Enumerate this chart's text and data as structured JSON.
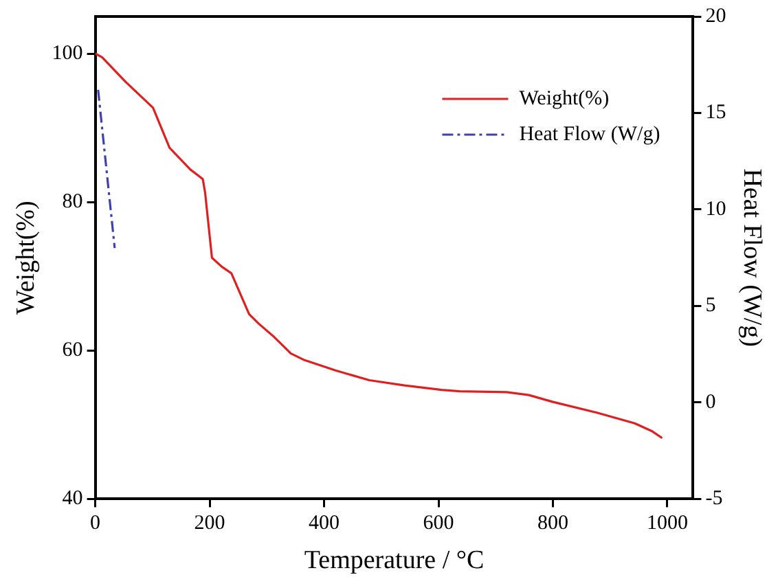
{
  "chart_data": {
    "type": "line",
    "xlabel": "Temperature / °C",
    "ylabel": "Weight(%)",
    "y2label": "Heat Flow (W/g)",
    "xlim": [
      0,
      1045
    ],
    "xticks": [
      0,
      200,
      400,
      600,
      800,
      1000
    ],
    "ylim": [
      40,
      105
    ],
    "yticks": [
      40,
      60,
      80,
      100
    ],
    "y2lim": [
      -5,
      20
    ],
    "y2ticks": [
      -5,
      0,
      5,
      10,
      15,
      20
    ],
    "legend": "top right",
    "grid": false,
    "marker": "none",
    "series": [
      {
        "name": "Weight(%)",
        "color": "#e02020",
        "line_style": "solid",
        "x": [
          0,
          12,
          53,
          101,
          130,
          166,
          188,
          192,
          204,
          221,
          238,
          269,
          286,
          313,
          342,
          366,
          421,
          479,
          541,
          606,
          637,
          719,
          758,
          799,
          878,
          943,
          974,
          991
        ],
        "values": [
          100,
          99.5,
          96.2,
          92.7,
          87.3,
          84.4,
          83.1,
          81.3,
          72.5,
          71.3,
          70.4,
          64.9,
          63.6,
          61.8,
          59.6,
          58.7,
          57.3,
          56,
          55.3,
          54.7,
          54.5,
          54.4,
          54,
          53.1,
          51.6,
          50.2,
          49.1,
          48.2
        ]
      },
      {
        "name": "Heat Flow (W/g)",
        "color": "#4040b0",
        "line_style": "dashed",
        "axis": "y2",
        "x": [
          5,
          34
        ],
        "values": [
          16.2,
          8.0
        ]
      }
    ]
  }
}
